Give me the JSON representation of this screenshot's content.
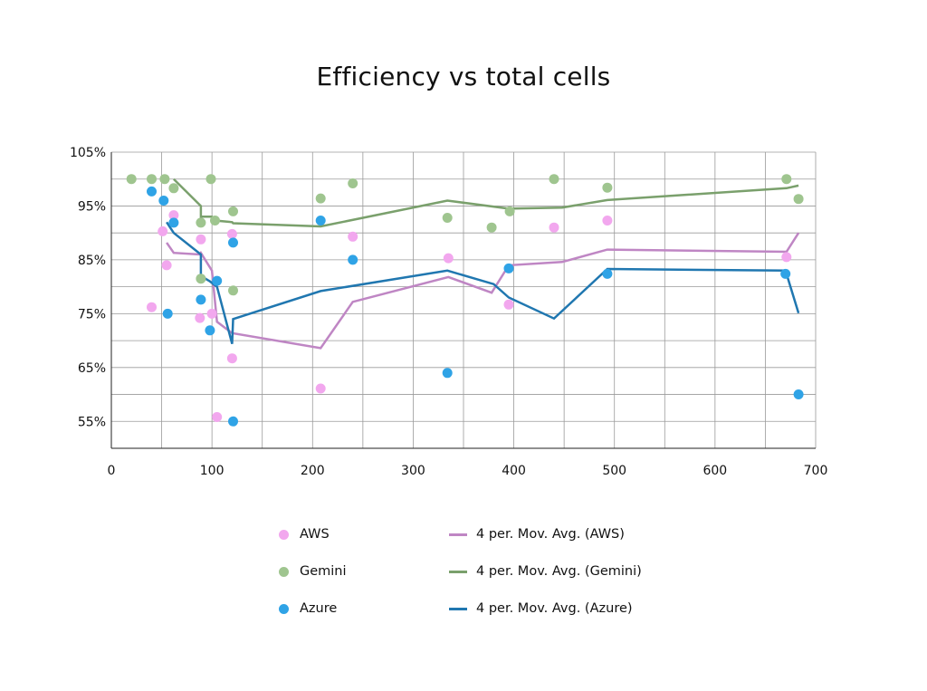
{
  "chart_data": {
    "type": "scatter",
    "title": "Efficiency vs total cells",
    "xlabel": "",
    "ylabel": "",
    "xlim": [
      0,
      700
    ],
    "ylim": [
      50,
      105
    ],
    "x_ticks": [
      0,
      100,
      200,
      300,
      400,
      500,
      600,
      700
    ],
    "y_ticks": [
      55,
      65,
      75,
      85,
      95,
      105
    ],
    "y_tick_labels": [
      "55%",
      "65%",
      "75%",
      "85%",
      "95%",
      "105%"
    ],
    "grid": true,
    "legend_position": "bottom",
    "series": [
      {
        "name": "AWS",
        "kind": "scatter",
        "color": "#f2a7ee",
        "points": [
          [
            40,
            76.2
          ],
          [
            51,
            90.3
          ],
          [
            55,
            84
          ],
          [
            62,
            93.3
          ],
          [
            88,
            74.2
          ],
          [
            89,
            88.8
          ],
          [
            100,
            75
          ],
          [
            105,
            55.8
          ],
          [
            120,
            66.7
          ],
          [
            120,
            89.8
          ],
          [
            208,
            61.1
          ],
          [
            240,
            89.3
          ],
          [
            335,
            85.3
          ],
          [
            395,
            76.7
          ],
          [
            440,
            91
          ],
          [
            493,
            92.3
          ],
          [
            671,
            85.5
          ]
        ]
      },
      {
        "name": "Gemini",
        "kind": "scatter",
        "color": "#9fc58f",
        "points": [
          [
            20,
            100
          ],
          [
            40,
            100
          ],
          [
            53,
            100
          ],
          [
            62,
            98.3
          ],
          [
            89,
            91.9
          ],
          [
            89,
            81.5
          ],
          [
            99,
            100
          ],
          [
            103,
            92.3
          ],
          [
            121,
            94
          ],
          [
            121,
            79.3
          ],
          [
            208,
            96.4
          ],
          [
            240,
            99.2
          ],
          [
            334,
            92.8
          ],
          [
            378,
            91
          ],
          [
            396,
            94
          ],
          [
            440,
            100
          ],
          [
            493,
            98.4
          ],
          [
            671,
            100
          ],
          [
            683,
            96.3
          ]
        ]
      },
      {
        "name": "Azure",
        "kind": "scatter",
        "color": "#2fa3e6",
        "points": [
          [
            40,
            97.7
          ],
          [
            52,
            96
          ],
          [
            56,
            75
          ],
          [
            62,
            91.9
          ],
          [
            89,
            77.6
          ],
          [
            98,
            71.9
          ],
          [
            105,
            81.1
          ],
          [
            121,
            55
          ],
          [
            121,
            88.2
          ],
          [
            208,
            92.3
          ],
          [
            240,
            85
          ],
          [
            334,
            64
          ],
          [
            395,
            83.4
          ],
          [
            493,
            82.4
          ],
          [
            670,
            82.4
          ],
          [
            683,
            60
          ]
        ]
      },
      {
        "name": "4 per. Mov. Avg. (AWS)",
        "kind": "line",
        "color": "#bf86c4",
        "points": [
          [
            55,
            88.2
          ],
          [
            62,
            86.3
          ],
          [
            88,
            86
          ],
          [
            89,
            86.3
          ],
          [
            100,
            83
          ],
          [
            105,
            73.5
          ],
          [
            120,
            71.4
          ],
          [
            208,
            68.6
          ],
          [
            240,
            77.2
          ],
          [
            335,
            81.8
          ],
          [
            378,
            78.9
          ],
          [
            395,
            84
          ],
          [
            448,
            84.6
          ],
          [
            493,
            86.9
          ],
          [
            671,
            86.5
          ],
          [
            683,
            90
          ]
        ]
      },
      {
        "name": "4 per. Mov. Avg. (Gemini)",
        "kind": "line",
        "color": "#7aa06c",
        "points": [
          [
            62,
            100
          ],
          [
            89,
            95
          ],
          [
            89,
            93
          ],
          [
            100,
            93
          ],
          [
            103,
            92.3
          ],
          [
            120,
            92
          ],
          [
            121,
            91.8
          ],
          [
            208,
            91.2
          ],
          [
            334,
            96
          ],
          [
            395,
            94.5
          ],
          [
            448,
            94.7
          ],
          [
            493,
            96.1
          ],
          [
            671,
            98.3
          ],
          [
            683,
            98.8
          ]
        ]
      },
      {
        "name": "4 per. Mov. Avg. (Azure)",
        "kind": "line",
        "color": "#2077b0",
        "points": [
          [
            55,
            92
          ],
          [
            62,
            90
          ],
          [
            89,
            86
          ],
          [
            89,
            82
          ],
          [
            98,
            81
          ],
          [
            105,
            80
          ],
          [
            120,
            69.4
          ],
          [
            121,
            74
          ],
          [
            208,
            79.2
          ],
          [
            334,
            83
          ],
          [
            380,
            80.5
          ],
          [
            395,
            78
          ],
          [
            440,
            74.1
          ],
          [
            493,
            83.3
          ],
          [
            670,
            83
          ],
          [
            683,
            75.1
          ]
        ]
      }
    ]
  }
}
